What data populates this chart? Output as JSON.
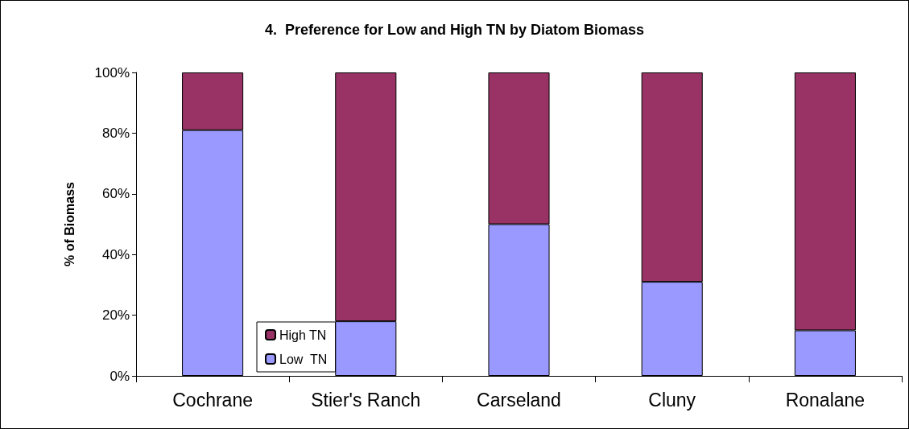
{
  "chart_data": {
    "type": "bar",
    "title": "4.  Preference for Low and High TN by Diatom Biomass",
    "ylabel": "% of Biomass",
    "categories": [
      "Cochrane",
      "Stier's Ranch",
      "Carseland",
      "Cluny",
      "Ronalane"
    ],
    "series": [
      {
        "name": "Low  TN",
        "color": "#9999ff",
        "values": [
          81,
          18,
          50,
          31,
          15
        ]
      },
      {
        "name": "High TN",
        "color": "#993366",
        "values": [
          19,
          82,
          50,
          69,
          85
        ]
      }
    ],
    "stacked": true,
    "ylim": [
      0,
      100
    ],
    "yticks": [
      {
        "value": 0,
        "label": "0%"
      },
      {
        "value": 20,
        "label": "20%"
      },
      {
        "value": 40,
        "label": "40%"
      },
      {
        "value": 60,
        "label": "60%"
      },
      {
        "value": 80,
        "label": "80%"
      },
      {
        "value": 100,
        "label": "100%"
      }
    ],
    "grid": false,
    "legend": "bottom left"
  }
}
